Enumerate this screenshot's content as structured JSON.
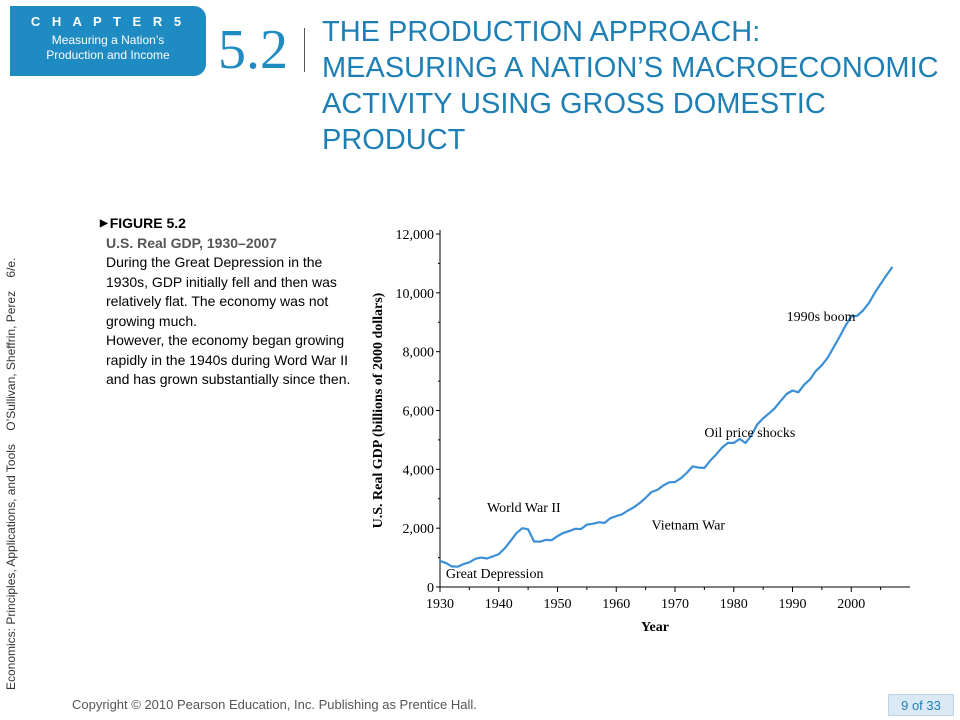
{
  "chapter": {
    "label": "C H A P T E R   5",
    "subtitle_line1": "Measuring a Nation’s",
    "subtitle_line2": "Production and Income"
  },
  "section": {
    "number": "5.2",
    "title": "THE PRODUCTION APPROACH: MEASURING A NATION’S MACROECONOMIC ACTIVITY USING GROSS DOMESTIC PRODUCT"
  },
  "side_text": "Economics: Principles, Applications, and Tools    O’Sullivan, Sheffrin, Perez    6/e.",
  "caption": {
    "figure_label": "FIGURE 5.2",
    "figure_title": "U.S. Real GDP, 1930–2007",
    "paragraph1": "During the Great Depression in the 1930s, GDP initially fell and then was relatively flat. The economy was not growing much.",
    "paragraph2": "However, the economy began growing  rapidly in the 1940s during Word War II and has grown substantially since then."
  },
  "footer": {
    "copyright": "Copyright © 2010 Pearson Education, Inc. Publishing as Prentice Hall.",
    "page": "9 of 33"
  },
  "colors": {
    "accent": "#1e8bc3",
    "title": "#1e7fb4",
    "line": "#3b8fd6"
  },
  "chart_data": {
    "type": "line",
    "xlabel": "Year",
    "ylabel": "U.S. Real GDP (billions of 2000 dollars)",
    "xlim": [
      1930,
      2007
    ],
    "ylim": [
      0,
      12000
    ],
    "x_ticks": [
      "1930",
      "1940",
      "1950",
      "1960",
      "1970",
      "1980",
      "1990",
      "2000"
    ],
    "y_ticks": [
      "0",
      "2,000",
      "4,000",
      "6,000",
      "8,000",
      "10,000",
      "12,000"
    ],
    "annotations": [
      {
        "text": "Great Depression",
        "x": 1931,
        "y": 300
      },
      {
        "text": "World War II",
        "x": 1938,
        "y": 2550
      },
      {
        "text": "Vietnam War",
        "x": 1966,
        "y": 1950
      },
      {
        "text": "Oil price shocks",
        "x": 1975,
        "y": 5100
      },
      {
        "text": "1990s boom",
        "x": 1989,
        "y": 9050
      }
    ],
    "series": [
      {
        "x": [
          1930,
          1931,
          1932,
          1933,
          1934,
          1935,
          1936,
          1937,
          1938,
          1939,
          1940,
          1941,
          1942,
          1943,
          1944,
          1945,
          1946,
          1947,
          1948,
          1949,
          1950,
          1951,
          1952,
          1953,
          1954,
          1955,
          1956,
          1957,
          1958,
          1959,
          1960,
          1961,
          1962,
          1963,
          1964,
          1965,
          1966,
          1967,
          1968,
          1969,
          1970,
          1971,
          1972,
          1973,
          1974,
          1975,
          1976,
          1977,
          1978,
          1979,
          1980,
          1981,
          1982,
          1983,
          1984,
          1985,
          1986,
          1987,
          1988,
          1989,
          1990,
          1991,
          1992,
          1993,
          1994,
          1995,
          1996,
          1997,
          1998,
          1999,
          2000,
          2001,
          2002,
          2003,
          2004,
          2005,
          2006,
          2007
        ],
        "values": [
          880,
          820,
          700,
          690,
          780,
          840,
          960,
          1000,
          970,
          1040,
          1120,
          1310,
          1560,
          1830,
          2000,
          1960,
          1550,
          1540,
          1600,
          1590,
          1730,
          1840,
          1900,
          1980,
          1970,
          2120,
          2150,
          2200,
          2180,
          2340,
          2410,
          2470,
          2600,
          2710,
          2860,
          3030,
          3230,
          3300,
          3450,
          3560,
          3570,
          3700,
          3880,
          4100,
          4060,
          4050,
          4300,
          4500,
          4740,
          4900,
          4900,
          5030,
          4900,
          5150,
          5530,
          5730,
          5900,
          6080,
          6330,
          6560,
          6680,
          6620,
          6880,
          7060,
          7350,
          7540,
          7800,
          8150,
          8500,
          8880,
          9200,
          9220,
          9400,
          9650,
          10000,
          10300,
          10600,
          10880
        ]
      }
    ]
  }
}
